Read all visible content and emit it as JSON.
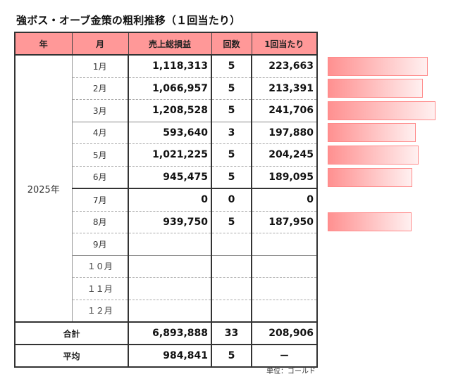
{
  "title": "強ボス・オーブ金策の粗利推移（１回当たり）",
  "table": {
    "headers": {
      "year": "年",
      "month": "月",
      "sales": "売上総損益",
      "count": "回数",
      "per_run": "1回当たり"
    },
    "year_label": "2025年",
    "rows": [
      {
        "month": "1月",
        "sales": "1,118,313",
        "count": "5",
        "per_run": "223,663"
      },
      {
        "month": "2月",
        "sales": "1,066,957",
        "count": "5",
        "per_run": "213,391"
      },
      {
        "month": "3月",
        "sales": "1,208,528",
        "count": "5",
        "per_run": "241,706"
      },
      {
        "month": "4月",
        "sales": "593,640",
        "count": "3",
        "per_run": "197,880"
      },
      {
        "month": "5月",
        "sales": "1,021,225",
        "count": "5",
        "per_run": "204,245"
      },
      {
        "month": "6月",
        "sales": "945,475",
        "count": "5",
        "per_run": "189,095"
      },
      {
        "month": "7月",
        "sales": "0",
        "count": "0",
        "per_run": "0"
      },
      {
        "month": "8月",
        "sales": "939,750",
        "count": "5",
        "per_run": "187,950"
      },
      {
        "month": "9月",
        "sales": "",
        "count": "",
        "per_run": ""
      },
      {
        "month": "１０月",
        "sales": "",
        "count": "",
        "per_run": ""
      },
      {
        "month": "１１月",
        "sales": "",
        "count": "",
        "per_run": ""
      },
      {
        "month": "１２月",
        "sales": "",
        "count": "",
        "per_run": ""
      }
    ],
    "total": {
      "label": "合計",
      "sales": "6,893,888",
      "count": "33",
      "per_run": "208,906"
    },
    "average": {
      "label": "平均",
      "sales": "984,841",
      "count": "5",
      "per_run": "－"
    }
  },
  "unit_note": "単位：ゴールド",
  "data_bars": {
    "color": "#ff9090",
    "max_value": 241706,
    "values": [
      223663,
      213391,
      241706,
      197880,
      204245,
      189095,
      0,
      187950,
      null,
      null,
      null,
      null
    ]
  }
}
